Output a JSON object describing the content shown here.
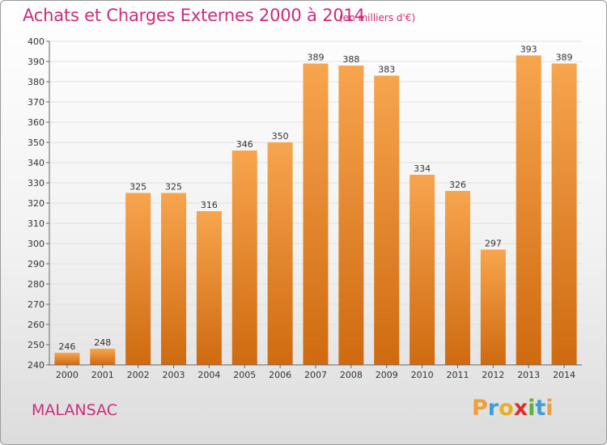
{
  "header": {
    "title": "Achats et Charges Externes 2000 à 2014",
    "subtitle": "(en milliers d'€)"
  },
  "footer": {
    "city": "MALANSAC",
    "brand_letters": [
      "P",
      "r",
      "o",
      "x",
      "i",
      "t",
      "i"
    ],
    "brand_colors": [
      "#f0a030",
      "#3aa0d8",
      "#e8b020",
      "#d83030",
      "#60b040",
      "#3aa0d8",
      "#e8a040"
    ]
  },
  "colors": {
    "bar_top": "#f7a54e",
    "bar_bottom": "#cf6a10",
    "grid": "#e0e0e0",
    "axis": "#666666"
  },
  "chart_data": {
    "type": "bar",
    "title": "Achats et Charges Externes 2000 à 2014",
    "subtitle": "(en milliers d'€)",
    "categories": [
      "2000",
      "2001",
      "2002",
      "2003",
      "2004",
      "2005",
      "2006",
      "2007",
      "2008",
      "2009",
      "2010",
      "2011",
      "2012",
      "2013",
      "2014"
    ],
    "values": [
      246,
      248,
      325,
      325,
      316,
      346,
      350,
      389,
      388,
      383,
      334,
      326,
      297,
      393,
      389
    ],
    "ylim": [
      240,
      400
    ],
    "yticks": [
      240,
      250,
      260,
      270,
      280,
      290,
      300,
      310,
      320,
      330,
      340,
      350,
      360,
      370,
      380,
      390,
      400
    ],
    "grid": true,
    "legend": "none"
  }
}
